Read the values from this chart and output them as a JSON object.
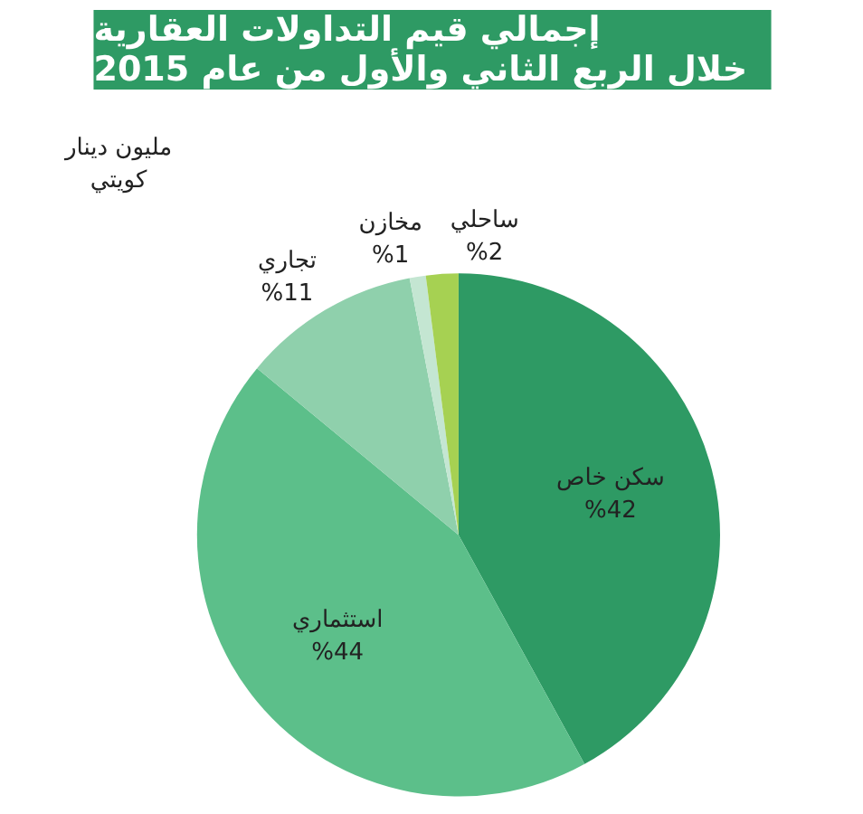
{
  "chart_data": {
    "type": "pie",
    "title": "إجمالي قيم التداولات العقارية\nخلال الربع الثاني والأول من عام   2015",
    "categories": [
      "سكن خاص",
      "استثماري",
      "تجاري",
      "مخازن",
      "ساحلي"
    ],
    "values": [
      42,
      44,
      11,
      1,
      2
    ],
    "value_labels": [
      "%42",
      "%44",
      "%11",
      "%1",
      "%2"
    ],
    "colors": [
      "#2e9a64",
      "#5cbf8a",
      "#8fd0ac",
      "#c4e6d2",
      "#a6d152"
    ],
    "annotations": [
      "مليون دينار\nكويتي"
    ]
  }
}
